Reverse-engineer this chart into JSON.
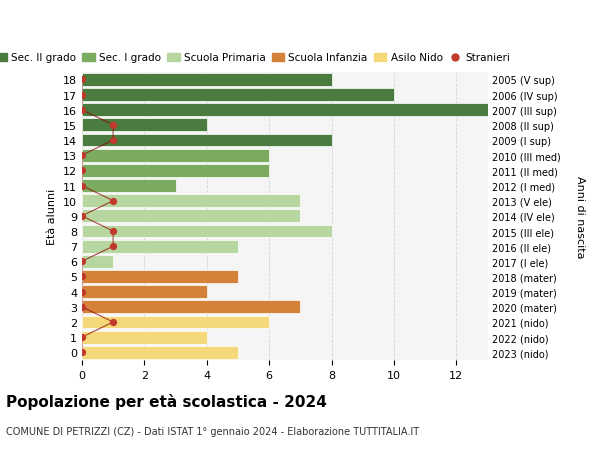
{
  "ages": [
    18,
    17,
    16,
    15,
    14,
    13,
    12,
    11,
    10,
    9,
    8,
    7,
    6,
    5,
    4,
    3,
    2,
    1,
    0
  ],
  "right_labels": [
    "2005 (V sup)",
    "2006 (IV sup)",
    "2007 (III sup)",
    "2008 (II sup)",
    "2009 (I sup)",
    "2010 (III med)",
    "2011 (II med)",
    "2012 (I med)",
    "2013 (V ele)",
    "2014 (IV ele)",
    "2015 (III ele)",
    "2016 (II ele)",
    "2017 (I ele)",
    "2018 (mater)",
    "2019 (mater)",
    "2020 (mater)",
    "2021 (nido)",
    "2022 (nido)",
    "2023 (nido)"
  ],
  "bar_values": [
    8,
    10,
    13,
    4,
    8,
    6,
    6,
    3,
    7,
    7,
    8,
    5,
    1,
    5,
    4,
    7,
    6,
    4,
    5
  ],
  "bar_colors": [
    "#4a7c3f",
    "#4a7c3f",
    "#4a7c3f",
    "#4a7c3f",
    "#4a7c3f",
    "#7aab5e",
    "#7aab5e",
    "#7aab5e",
    "#b8d6a0",
    "#b8d6a0",
    "#b8d6a0",
    "#b8d6a0",
    "#b8d6a0",
    "#d4823a",
    "#d4823a",
    "#d4823a",
    "#f5d87a",
    "#f5d87a",
    "#f5d87a"
  ],
  "stranieri_x": [
    0,
    0,
    0,
    1,
    1,
    0,
    0,
    0,
    1,
    0,
    1,
    1,
    0,
    0,
    0,
    0,
    1,
    0,
    0
  ],
  "legend_labels": [
    "Sec. II grado",
    "Sec. I grado",
    "Scuola Primaria",
    "Scuola Infanzia",
    "Asilo Nido",
    "Stranieri"
  ],
  "legend_colors": [
    "#4a7c3f",
    "#7aab5e",
    "#b8d6a0",
    "#d4823a",
    "#f5d87a",
    "#c0392b"
  ],
  "title": "Popolazione per età scolastica - 2024",
  "subtitle": "COMUNE DI PETRIZZI (CZ) - Dati ISTAT 1° gennaio 2024 - Elaborazione TUTTITALIA.IT",
  "ylabel_left": "Età alunni",
  "ylabel_right": "Anni di nascita",
  "xlim": [
    0,
    13
  ],
  "background_color": "#ffffff",
  "grid_color": "#cccccc"
}
